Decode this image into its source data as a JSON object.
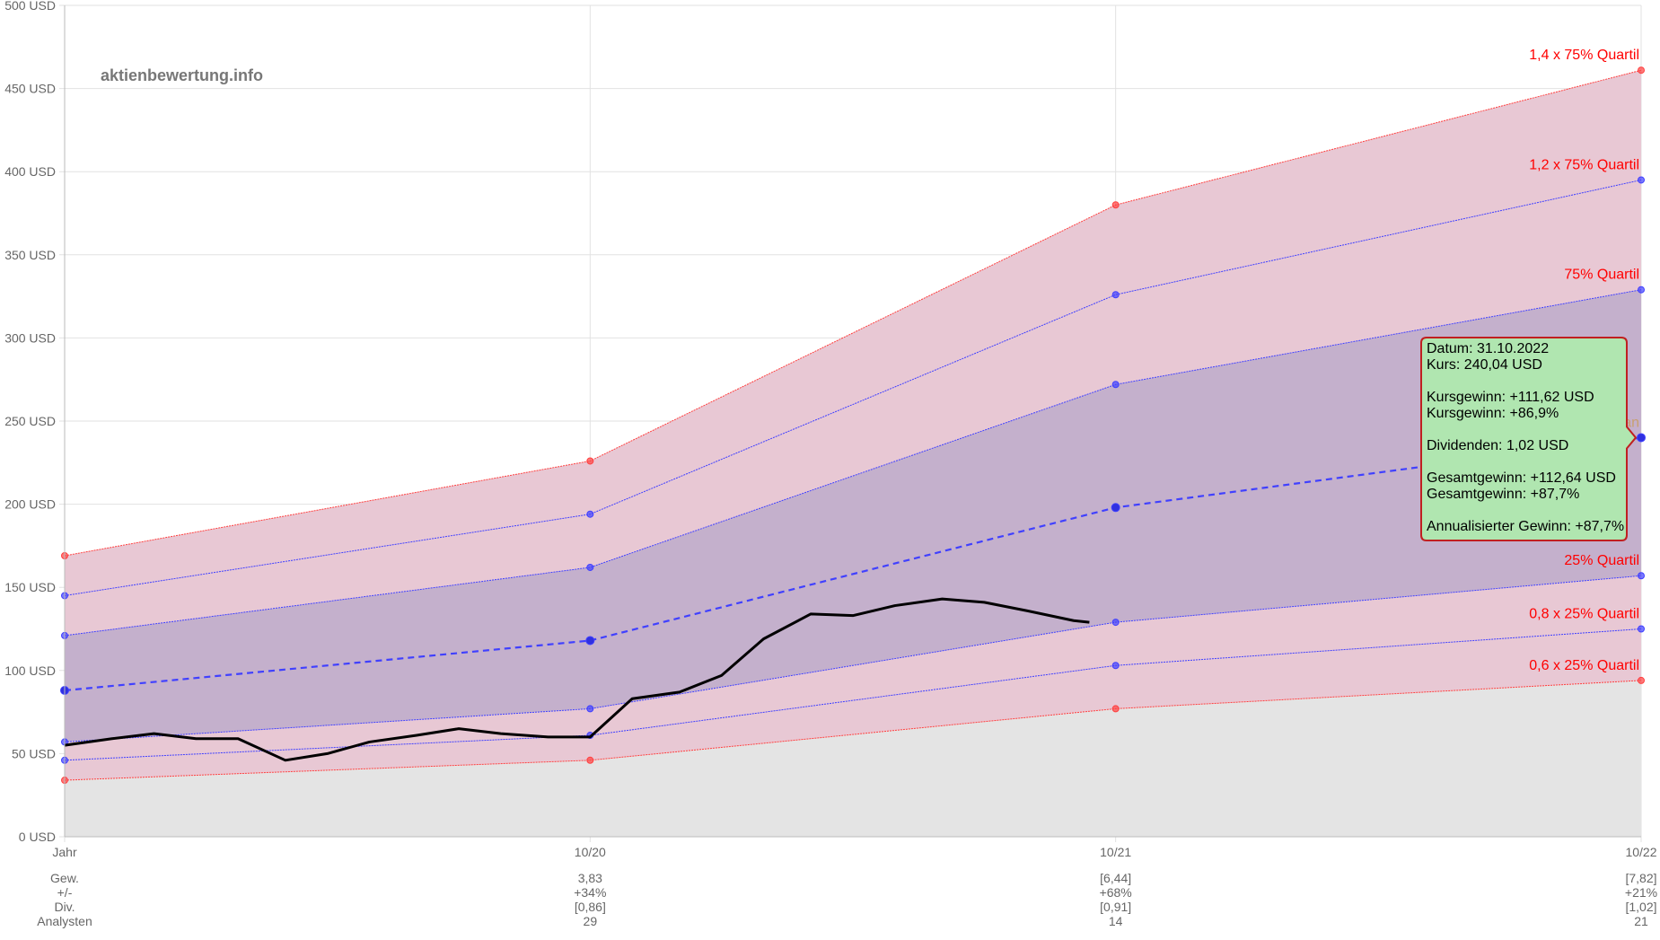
{
  "watermark": "aktienbewertung.info",
  "chart_data": {
    "type": "area",
    "currency": "USD",
    "y_ticks": [
      0,
      50,
      100,
      150,
      200,
      250,
      300,
      350,
      400,
      450,
      500
    ],
    "ylim": [
      0,
      500
    ],
    "y_tick_labels": [
      "0 USD",
      "50 USD",
      "100 USD",
      "150 USD",
      "200 USD",
      "250 USD",
      "300 USD",
      "350 USD",
      "400 USD",
      "450 USD",
      "500 USD"
    ],
    "x_tick_labels": [
      "Jahr",
      "10/20",
      "10/21",
      "10/22"
    ],
    "x_positions": [
      2019.83,
      2020.83,
      2021.83,
      2022.83
    ],
    "grid": true,
    "colors": {
      "band_outer": "#e8c8d4",
      "band_inner": "#c4b0cc",
      "below": "#e4e4e4",
      "red_line": "#ff4040",
      "blue_line": "#4040ff",
      "price_line": "#000000"
    },
    "bands": [
      {
        "name": "1,4 x 75% Quartil",
        "color": "#ff4040",
        "values": [
          169,
          226,
          380,
          461
        ]
      },
      {
        "name": "1,2 x 75% Quartil",
        "color": "#4040ff",
        "values": [
          145,
          194,
          326,
          395
        ]
      },
      {
        "name": "75% Quartil",
        "color": "#4040ff",
        "values": [
          121,
          162,
          272,
          329
        ]
      },
      {
        "name": "Median",
        "color": "#4040ff",
        "dashed": true,
        "values": [
          88,
          118,
          198,
          240.04
        ]
      },
      {
        "name": "25% Quartil",
        "color": "#4040ff",
        "values": [
          57,
          77,
          129,
          157
        ]
      },
      {
        "name": "0,8 x 25% Quartil",
        "color": "#4040ff",
        "values": [
          46,
          61,
          103,
          125
        ]
      },
      {
        "name": "0,6 x 25% Quartil",
        "color": "#ff4040",
        "values": [
          34,
          46,
          77,
          94
        ]
      }
    ],
    "price_series": {
      "x": [
        2019.83,
        2019.92,
        2020.0,
        2020.08,
        2020.16,
        2020.25,
        2020.33,
        2020.41,
        2020.5,
        2020.58,
        2020.66,
        2020.75,
        2020.83,
        2020.91,
        2021.0,
        2021.08,
        2021.16,
        2021.25,
        2021.33,
        2021.41,
        2021.5,
        2021.58,
        2021.66,
        2021.75,
        2021.78
      ],
      "values": [
        55,
        59,
        62,
        59,
        59,
        46,
        50,
        57,
        61,
        65,
        62,
        60,
        60,
        83,
        87,
        97,
        119,
        134,
        133,
        139,
        143,
        141,
        136,
        130,
        129
      ]
    },
    "stats": {
      "row_labels": [
        "Gew.",
        "+/-",
        "Div.",
        "Analysten"
      ],
      "columns": [
        {
          "values": [
            "",
            "",
            "",
            ""
          ]
        },
        {
          "values": [
            "3,83",
            "+34%",
            "[0,86]",
            "29"
          ]
        },
        {
          "values": [
            "[6,44]",
            "+68%",
            "[0,91]",
            "14"
          ]
        },
        {
          "values": [
            "[7,82]",
            "+21%",
            "[1,02]",
            "21"
          ]
        }
      ]
    },
    "tooltip": {
      "lines": [
        "Datum: 31.10.2022",
        "Kurs: 240,04 USD",
        "",
        "Kursgewinn: +111,62 USD",
        "Kursgewinn: +86,9%",
        "",
        "Dividenden: 1,02 USD",
        "",
        "Gesamtgewinn: +112,64 USD",
        "Gesamtgewinn: +87,7%",
        "",
        "Annualisierter Gewinn: +87,7%"
      ],
      "background": "#b0e6b0",
      "border": "#c02020"
    }
  }
}
